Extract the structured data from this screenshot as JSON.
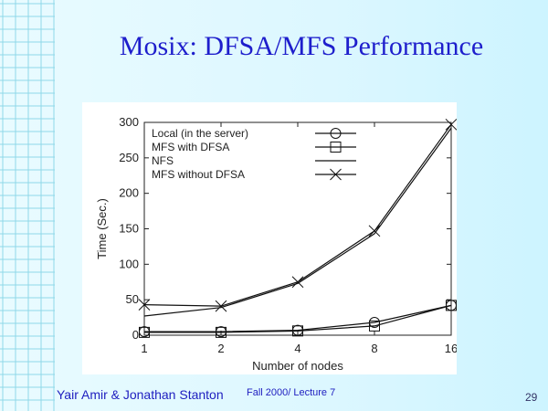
{
  "slide": {
    "title": "Mosix: DFSA/MFS Performance",
    "footer_authors": "Yair Amir & Jonathan Stanton",
    "footer_course": "Fall 2000/ Lecture 7",
    "number": "29"
  },
  "chart_data": {
    "type": "line",
    "title": "",
    "xlabel": "Number of nodes",
    "ylabel": "Time (Sec.)",
    "x": [
      1,
      2,
      4,
      8,
      16
    ],
    "x_scale": "log2",
    "ylim": [
      0,
      300
    ],
    "yticks": [
      0,
      50,
      100,
      150,
      200,
      250,
      300
    ],
    "grid": false,
    "legend_position": "top-left",
    "series": [
      {
        "name": "Local (in the server)",
        "marker": "circle",
        "values": [
          5,
          5,
          7,
          18,
          42
        ]
      },
      {
        "name": "MFS with DFSA",
        "marker": "square",
        "values": [
          4,
          4,
          6,
          13,
          42
        ]
      },
      {
        "name": "NFS",
        "marker": "none",
        "values": [
          27,
          39,
          73,
          143,
          292
        ]
      },
      {
        "name": "MFS without DFSA",
        "marker": "x",
        "values": [
          43,
          41,
          75,
          147,
          297
        ]
      }
    ]
  }
}
